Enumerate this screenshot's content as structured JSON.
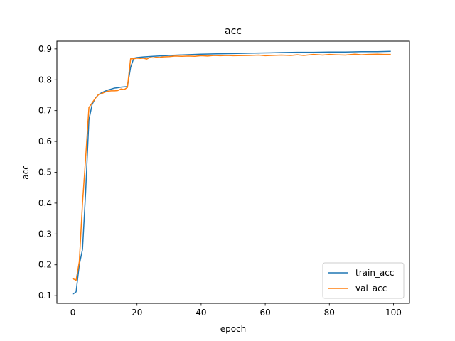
{
  "chart_data": {
    "type": "line",
    "title": "acc",
    "xlabel": "epoch",
    "ylabel": "acc",
    "xlim": [
      -5,
      105
    ],
    "ylim": [
      0.075,
      0.925
    ],
    "xticks": [
      0,
      20,
      40,
      60,
      80,
      100
    ],
    "yticks": [
      0.1,
      0.2,
      0.3,
      0.4,
      0.5,
      0.6,
      0.7,
      0.8,
      0.9
    ],
    "grid": false,
    "legend_position": "lower-right",
    "series": [
      {
        "name": "train_acc",
        "color": "#1f77b4",
        "x": [
          0,
          1,
          2,
          3,
          4,
          5,
          6,
          7,
          8,
          9,
          10,
          11,
          12,
          13,
          14,
          15,
          16,
          17,
          18,
          19,
          20,
          22,
          25,
          30,
          35,
          40,
          45,
          50,
          55,
          60,
          65,
          70,
          75,
          80,
          85,
          90,
          95,
          99
        ],
        "y": [
          0.105,
          0.112,
          0.2,
          0.25,
          0.44,
          0.67,
          0.72,
          0.74,
          0.752,
          0.758,
          0.763,
          0.767,
          0.77,
          0.773,
          0.774,
          0.776,
          0.777,
          0.778,
          0.84,
          0.87,
          0.872,
          0.874,
          0.876,
          0.879,
          0.881,
          0.883,
          0.884,
          0.885,
          0.886,
          0.887,
          0.888,
          0.889,
          0.889,
          0.89,
          0.89,
          0.891,
          0.891,
          0.892
        ]
      },
      {
        "name": "val_acc",
        "color": "#ff7f0e",
        "x": [
          0,
          1,
          2,
          3,
          4,
          5,
          6,
          7,
          8,
          9,
          10,
          11,
          12,
          13,
          14,
          15,
          16,
          17,
          18,
          19,
          20,
          21,
          22,
          23,
          24,
          25,
          26,
          27,
          28,
          30,
          32,
          34,
          36,
          38,
          40,
          42,
          44,
          46,
          48,
          50,
          55,
          58,
          60,
          62,
          65,
          68,
          70,
          72,
          75,
          78,
          80,
          82,
          85,
          88,
          90,
          92,
          95,
          97,
          99
        ],
        "y": [
          0.155,
          0.15,
          0.21,
          0.4,
          0.55,
          0.71,
          0.725,
          0.74,
          0.752,
          0.755,
          0.76,
          0.763,
          0.764,
          0.764,
          0.765,
          0.77,
          0.768,
          0.775,
          0.868,
          0.868,
          0.87,
          0.869,
          0.87,
          0.867,
          0.872,
          0.871,
          0.873,
          0.872,
          0.874,
          0.875,
          0.877,
          0.876,
          0.877,
          0.876,
          0.878,
          0.877,
          0.879,
          0.878,
          0.879,
          0.878,
          0.879,
          0.88,
          0.878,
          0.879,
          0.88,
          0.879,
          0.881,
          0.879,
          0.882,
          0.88,
          0.882,
          0.881,
          0.88,
          0.883,
          0.881,
          0.882,
          0.883,
          0.882,
          0.882
        ]
      }
    ]
  }
}
